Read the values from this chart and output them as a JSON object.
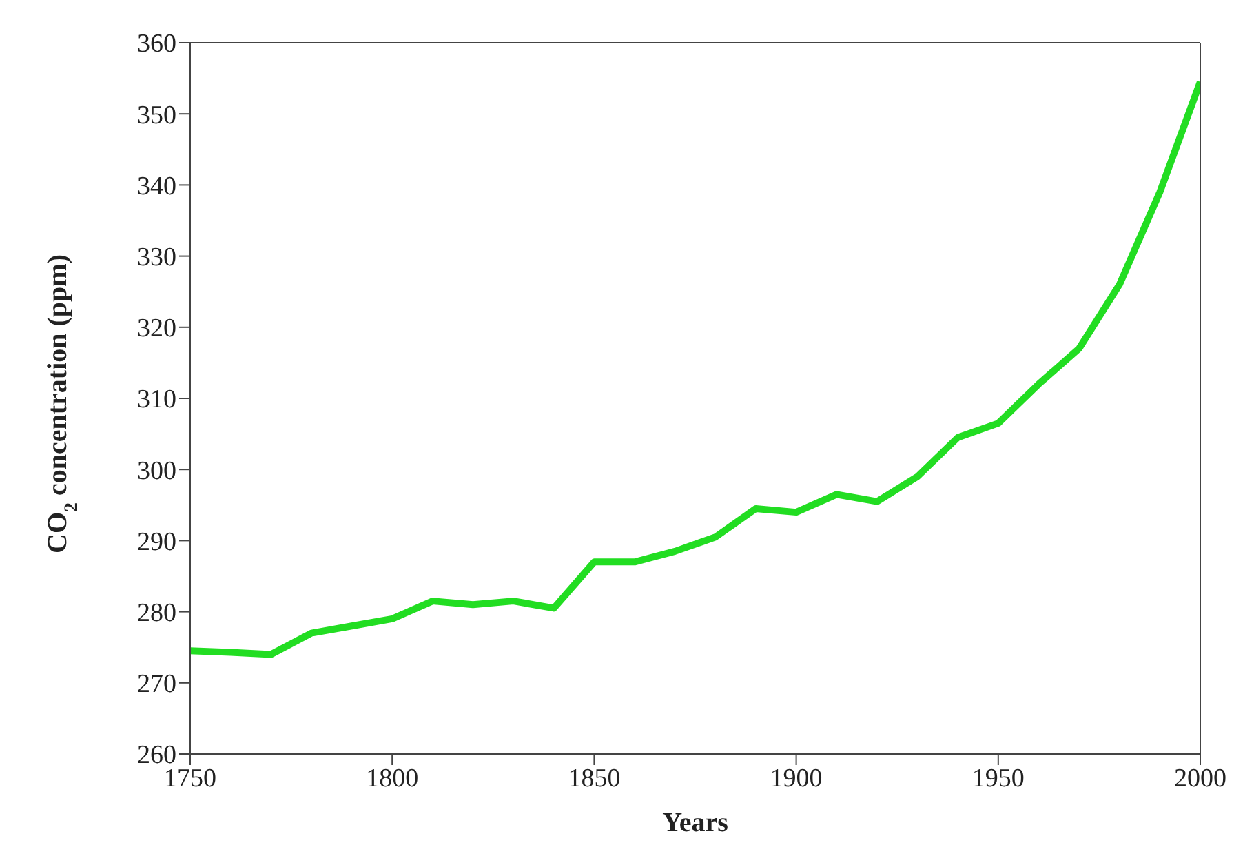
{
  "chart_data": {
    "type": "line",
    "xlabel": "Years",
    "ylabel": "CO$_{2}$ concentration (ppm)",
    "x": [
      1750,
      1760,
      1770,
      1780,
      1790,
      1800,
      1810,
      1820,
      1830,
      1840,
      1850,
      1860,
      1870,
      1880,
      1890,
      1900,
      1910,
      1920,
      1930,
      1940,
      1950,
      1960,
      1970,
      1980,
      1990,
      2000
    ],
    "series": [
      {
        "color": "#22dd22",
        "values": [
          274.5,
          274.3,
          274,
          277,
          278,
          279,
          281.5,
          281,
          281.5,
          280.5,
          287,
          287,
          288.5,
          290.5,
          294.5,
          294,
          296.5,
          295.5,
          299,
          304.5,
          306.5,
          312,
          317,
          326,
          339,
          354.5
        ]
      }
    ],
    "xlim": [
      1750,
      2000
    ],
    "xticks": [
      1750,
      1800,
      1850,
      1900,
      1950,
      2000
    ],
    "ylim": [
      260,
      360
    ],
    "yticks": [
      260,
      270,
      280,
      290,
      300,
      310,
      320,
      330,
      340,
      350,
      360
    ],
    "grid": false,
    "legend": false,
    "marker": "none",
    "line_style": "solid"
  }
}
